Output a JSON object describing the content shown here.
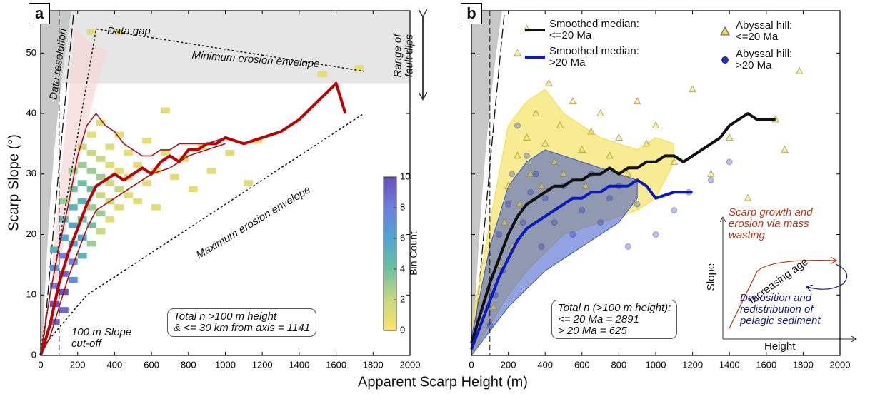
{
  "chart_data": [
    {
      "type": "heatmap",
      "panel": "a",
      "xlabel": "Apparent Scarp Height (m)",
      "ylabel": "Scarp Slope (°)",
      "xlim": [
        0,
        2000
      ],
      "xticks": [
        0,
        200,
        400,
        600,
        800,
        1000,
        1200,
        1400,
        1600,
        1800,
        2000
      ],
      "ylim": [
        0,
        57
      ],
      "yticks": [
        0,
        10,
        20,
        30,
        40,
        50
      ],
      "shade_band": [
        45,
        57
      ],
      "cutoff_x": 100,
      "bin_width": 50,
      "bin_height": 1,
      "cells": {
        "x": [
          50,
          50,
          50,
          50,
          50,
          100,
          100,
          100,
          100,
          100,
          100,
          100,
          150,
          150,
          150,
          150,
          150,
          150,
          150,
          200,
          200,
          200,
          200,
          200,
          200,
          200,
          250,
          250,
          250,
          250,
          250,
          250,
          250,
          300,
          300,
          300,
          300,
          300,
          300,
          350,
          350,
          350,
          350,
          350,
          400,
          400,
          400,
          400,
          450,
          450,
          450,
          500,
          500,
          550,
          550,
          600,
          600,
          650,
          700,
          750,
          800,
          850,
          900,
          1000,
          1100,
          1500,
          1700,
          400,
          1150,
          650,
          250
        ],
        "y": [
          5,
          8,
          11,
          14,
          17,
          7,
          10,
          13,
          16,
          19,
          22,
          25,
          12,
          15,
          18,
          21,
          24,
          27,
          30,
          16,
          19,
          22,
          25,
          28,
          31,
          34,
          18,
          21,
          24,
          27,
          30,
          33,
          36,
          20,
          23,
          26,
          29,
          32,
          38,
          22,
          25,
          28,
          31,
          34,
          24,
          27,
          30,
          36,
          26,
          29,
          33,
          25,
          31,
          28,
          35,
          30,
          24,
          33,
          29,
          32,
          27,
          34,
          30,
          33,
          28,
          46,
          47,
          53,
          35,
          40,
          53
        ],
        "counts": [
          9,
          10,
          8,
          7,
          5,
          9,
          10,
          9,
          8,
          6,
          5,
          3,
          7,
          8,
          6,
          6,
          5,
          4,
          3,
          5,
          6,
          4,
          5,
          4,
          3,
          2,
          3,
          4,
          3,
          4,
          3,
          2,
          1,
          2,
          3,
          2,
          3,
          2,
          1,
          1,
          2,
          2,
          1,
          1,
          1,
          2,
          1,
          1,
          1,
          1,
          1,
          1,
          1,
          1,
          1,
          1,
          1,
          1,
          1,
          1,
          1,
          1,
          1,
          1,
          1,
          1,
          1,
          1,
          1,
          1,
          1
        ]
      },
      "colorbar": {
        "label": "Bin Count",
        "lim": [
          0,
          10
        ],
        "ticks": [
          0,
          2,
          4,
          6,
          8,
          10
        ],
        "colors": [
          "#fbe36b",
          "#c9d97f",
          "#6fc0a0",
          "#4fa6d0",
          "#6c7fe0",
          "#6a4fb8"
        ]
      },
      "envelopes": [
        {
          "x": [
            0,
            300,
            1750
          ],
          "values": [
            1,
            54,
            47
          ]
        },
        {
          "x": [
            0,
            250,
            1750
          ],
          "values": [
            1,
            10,
            40
          ]
        }
      ],
      "series": [
        {
          "color": "#c00000",
          "width": 4,
          "x": [
            0,
            50,
            100,
            150,
            200,
            250,
            300,
            350,
            400,
            450,
            500,
            550,
            600,
            650,
            700,
            750,
            800,
            850,
            900,
            950,
            1000,
            1100,
            1200,
            1300,
            1400,
            1500,
            1600,
            1650
          ],
          "values": [
            0,
            5,
            12,
            17,
            21,
            25,
            28,
            29,
            30,
            29,
            30,
            31,
            30,
            32,
            33,
            32,
            34,
            34,
            35,
            35,
            36,
            35,
            36,
            37,
            39,
            42,
            45,
            40
          ]
        },
        {
          "color": "#b01010",
          "width": 1.6,
          "x": [
            0,
            50,
            100,
            150,
            200,
            250,
            300,
            350,
            400,
            450,
            500,
            550,
            600,
            650,
            700,
            750,
            800,
            900,
            1000
          ],
          "values": [
            0,
            10,
            18,
            25,
            33,
            38,
            40,
            38,
            37,
            35,
            34,
            33,
            33,
            34,
            34,
            35,
            35,
            35,
            36
          ]
        },
        {
          "color": "#b01010",
          "width": 1.6,
          "x": [
            0,
            50,
            100,
            150,
            200,
            250,
            300,
            350,
            400,
            500,
            600,
            700,
            800,
            900,
            1000
          ],
          "values": [
            0,
            3,
            8,
            13,
            17,
            21,
            24,
            25,
            26,
            28,
            30,
            31,
            33,
            34,
            35
          ]
        }
      ],
      "annotations": [
        "Data gap",
        "Data resolution",
        "Minimum erosion envelope",
        "Range of\nfault dips",
        "Maximum erosion envelope",
        "100 m Slope\ncut-off",
        "Total n >100 m height\n& <= 30 km from axis = 1141"
      ]
    },
    {
      "type": "scatter",
      "panel": "b",
      "xlim": [
        0,
        2000
      ],
      "xticks": [
        0,
        200,
        400,
        600,
        800,
        1000,
        1200,
        1400,
        1600,
        1800,
        2000
      ],
      "ylim": [
        0,
        57
      ],
      "yticks": [
        0,
        10,
        20,
        30,
        40,
        50
      ],
      "ytick_labels": false,
      "cutoff_x": 100,
      "bands": [
        {
          "color": "#f2dc3a",
          "x": [
            0,
            100,
            200,
            300,
            400,
            500,
            600,
            700,
            800,
            900,
            1000,
            1100
          ],
          "upper": [
            5,
            22,
            38,
            42,
            44,
            40,
            38,
            36,
            35,
            34,
            36,
            35
          ],
          "lower": [
            0,
            5,
            10,
            14,
            17,
            20,
            21,
            22,
            23,
            24,
            26,
            32
          ]
        },
        {
          "color": "#3a55c8",
          "x": [
            0,
            100,
            200,
            300,
            400,
            500,
            600,
            700,
            800,
            900
          ],
          "upper": [
            3,
            18,
            28,
            32,
            34,
            33,
            32,
            31,
            30,
            29
          ],
          "lower": [
            0,
            4,
            8,
            11,
            14,
            16,
            18,
            20,
            22,
            26
          ]
        }
      ],
      "series": [
        {
          "name": "Smoothed median:\n<=20 Ma",
          "color": "#111111",
          "width": 4,
          "x": [
            0,
            50,
            100,
            150,
            200,
            250,
            300,
            350,
            400,
            450,
            500,
            550,
            600,
            650,
            700,
            750,
            800,
            850,
            900,
            950,
            1000,
            1050,
            1100,
            1150,
            1200,
            1250,
            1300,
            1350,
            1400,
            1450,
            1500,
            1550,
            1600,
            1650
          ],
          "values": [
            2,
            7,
            12,
            16,
            20,
            23,
            25,
            26,
            27,
            28,
            28,
            29,
            29,
            30,
            30,
            31,
            30,
            31,
            31,
            32,
            32,
            33,
            33,
            32,
            33,
            34,
            35,
            36,
            38,
            39,
            40,
            39,
            39,
            39
          ]
        },
        {
          "name": "Smoothed median:\n>20 Ma",
          "color": "#0a1ac0",
          "width": 4,
          "x": [
            0,
            50,
            100,
            150,
            200,
            250,
            300,
            350,
            400,
            450,
            500,
            550,
            600,
            650,
            700,
            750,
            800,
            850,
            900,
            950,
            1000,
            1100,
            1200
          ],
          "values": [
            1,
            5,
            9,
            13,
            16,
            19,
            21,
            22,
            23,
            24,
            25,
            26,
            26,
            27,
            27,
            28,
            28,
            28,
            29,
            28,
            26,
            27,
            27
          ]
        },
        {
          "name": "Abyssal hill:\n<=20 Ma",
          "marker": "triangle",
          "color": "#f2e14a",
          "x": [
            120,
            150,
            180,
            200,
            220,
            250,
            260,
            300,
            320,
            350,
            380,
            400,
            420,
            450,
            480,
            500,
            550,
            600,
            620,
            650,
            700,
            750,
            800,
            850,
            900,
            950,
            1000,
            1100,
            1200,
            1300,
            1400,
            1500,
            1700,
            1780,
            1650,
            300,
            250
          ],
          "values": [
            8,
            15,
            22,
            28,
            18,
            33,
            25,
            36,
            30,
            40,
            28,
            35,
            45,
            32,
            38,
            30,
            42,
            34,
            28,
            37,
            40,
            33,
            36,
            30,
            42,
            35,
            38,
            32,
            44,
            30,
            36,
            26,
            34,
            47,
            39,
            54,
            50
          ]
        },
        {
          "name": "Abyssal hill:\n>20 Ma",
          "marker": "circle",
          "color": "#2030b0",
          "x": [
            100,
            130,
            150,
            170,
            200,
            220,
            250,
            280,
            300,
            320,
            350,
            380,
            400,
            450,
            500,
            550,
            600,
            650,
            700,
            750,
            800,
            850,
            900,
            1000,
            1100,
            1180,
            1300,
            1400
          ],
          "values": [
            5,
            10,
            20,
            14,
            25,
            30,
            38,
            22,
            33,
            27,
            30,
            18,
            26,
            22,
            28,
            20,
            24,
            30,
            22,
            26,
            28,
            18,
            25,
            20,
            24,
            27,
            29,
            32
          ]
        }
      ],
      "annotations": [
        "Total n (>100 m height):\n<= 20 Ma = 2891\n> 20 Ma = 625",
        "Scarp growth and\nerosion via mass\nwasting",
        "Increasing age",
        "Deposition and\nredistribution of\npelagic sediment",
        "Slope",
        "Height"
      ]
    }
  ]
}
